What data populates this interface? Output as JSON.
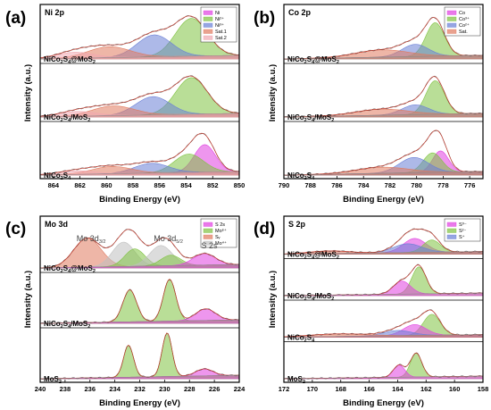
{
  "figure": {
    "x_axis_label": "Binding Energy (eV)",
    "y_axis_label": "Intensity (a.u.)"
  },
  "chart_data": [
    {
      "id": "a",
      "letter": "(a)",
      "title": "Ni 2p",
      "type": "line",
      "xlabel": "Binding Energy (eV)",
      "ylabel": "Intensity (a.u.)",
      "xlim": [
        865,
        850
      ],
      "xticks": [
        864,
        862,
        860,
        858,
        856,
        854,
        852,
        850
      ],
      "legend": {
        "placement": "top-right",
        "entries": [
          {
            "name": "Ni",
            "color": "#e040e0"
          },
          {
            "name": "Ni²⁺",
            "color": "#7fc241"
          },
          {
            "name": "Ni³⁺",
            "color": "#6a7fd6"
          },
          {
            "name": "Sat.1",
            "color": "#e07a5f"
          },
          {
            "name": "Sat.2",
            "color": "#f0a8b0"
          }
        ]
      },
      "samples": [
        {
          "label": "NiCo₂S₄@MoS₂",
          "label_main": "NiCo",
          "label_parts": [
            "2",
            "S",
            "4",
            "@MoS",
            "2"
          ],
          "peaks": [
            {
              "center": 853.6,
              "height": 0.62,
              "width": 1.2,
              "color": "#7fc241"
            },
            {
              "center": 856.4,
              "height": 0.36,
              "width": 1.3,
              "color": "#6a7fd6"
            },
            {
              "center": 859.8,
              "height": 0.18,
              "width": 1.6,
              "color": "#e07a5f"
            },
            {
              "center": 862.4,
              "height": 0.1,
              "width": 1.4,
              "color": "#f0a8b0"
            }
          ]
        },
        {
          "label": "NiCo₂S₄/MoS₂",
          "label_main": "NiCo",
          "label_parts": [
            "2",
            "S",
            "4",
            "/MoS",
            "2"
          ],
          "peaks": [
            {
              "center": 853.6,
              "height": 0.6,
              "width": 1.2,
              "color": "#7fc241"
            },
            {
              "center": 856.5,
              "height": 0.3,
              "width": 1.3,
              "color": "#6a7fd6"
            },
            {
              "center": 859.5,
              "height": 0.16,
              "width": 1.6,
              "color": "#e07a5f"
            },
            {
              "center": 862.2,
              "height": 0.08,
              "width": 1.4,
              "color": "#f0a8b0"
            }
          ]
        },
        {
          "label": "NiCo₂S₄",
          "label_main": "NiCo",
          "label_parts": [
            "2",
            "S",
            "4",
            "",
            ""
          ],
          "peaks": [
            {
              "center": 852.6,
              "height": 0.45,
              "width": 0.8,
              "color": "#e040e0"
            },
            {
              "center": 853.8,
              "height": 0.3,
              "width": 1.1,
              "color": "#7fc241"
            },
            {
              "center": 856.6,
              "height": 0.16,
              "width": 1.3,
              "color": "#6a7fd6"
            },
            {
              "center": 859.6,
              "height": 0.12,
              "width": 1.5,
              "color": "#e07a5f"
            },
            {
              "center": 862.3,
              "height": 0.06,
              "width": 1.4,
              "color": "#f0a8b0"
            }
          ]
        }
      ]
    },
    {
      "id": "b",
      "letter": "(b)",
      "title": "Co 2p",
      "type": "line",
      "xlabel": "Binding Energy (eV)",
      "ylabel": "Intensity (a.u.)",
      "xlim": [
        790,
        775
      ],
      "xticks": [
        790,
        788,
        786,
        784,
        782,
        780,
        778,
        776
      ],
      "legend": {
        "placement": "top-right",
        "entries": [
          {
            "name": "Co",
            "color": "#e040e0"
          },
          {
            "name": "Co³⁺",
            "color": "#7fc241"
          },
          {
            "name": "Co²⁺",
            "color": "#6a7fd6"
          },
          {
            "name": "Sat.",
            "color": "#e07a5f"
          }
        ]
      },
      "samples": [
        {
          "label": "NiCo₂S₄@MoS₂",
          "label_main": "NiCo",
          "label_parts": [
            "2",
            "S",
            "4",
            "@MoS",
            "2"
          ],
          "peaks": [
            {
              "center": 778.6,
              "height": 0.55,
              "width": 0.7,
              "color": "#7fc241"
            },
            {
              "center": 780.1,
              "height": 0.2,
              "width": 1.0,
              "color": "#6a7fd6"
            },
            {
              "center": 782.6,
              "height": 0.12,
              "width": 2.0,
              "color": "#e07a5f"
            }
          ]
        },
        {
          "label": "NiCo₂S₄/MoS₂",
          "label_main": "NiCo",
          "label_parts": [
            "2",
            "S",
            "4",
            "/MoS",
            "2"
          ],
          "peaks": [
            {
              "center": 778.6,
              "height": 0.55,
              "width": 0.7,
              "color": "#7fc241"
            },
            {
              "center": 780.1,
              "height": 0.16,
              "width": 1.0,
              "color": "#6a7fd6"
            },
            {
              "center": 782.6,
              "height": 0.1,
              "width": 2.0,
              "color": "#e07a5f"
            }
          ]
        },
        {
          "label": "NiCo₂S₄",
          "label_main": "NiCo",
          "label_parts": [
            "2",
            "S",
            "4",
            "",
            ""
          ],
          "peaks": [
            {
              "center": 778.2,
              "height": 0.35,
              "width": 0.6,
              "color": "#e040e0"
            },
            {
              "center": 778.8,
              "height": 0.32,
              "width": 0.7,
              "color": "#7fc241"
            },
            {
              "center": 780.2,
              "height": 0.25,
              "width": 1.1,
              "color": "#6a7fd6"
            },
            {
              "center": 782.6,
              "height": 0.1,
              "width": 2.0,
              "color": "#e07a5f"
            }
          ]
        }
      ]
    },
    {
      "id": "c",
      "letter": "(c)",
      "title": "Mo 3d",
      "type": "line",
      "xlabel": "Binding Energy (eV)",
      "ylabel": "Intensity (a.u.)",
      "xlim": [
        240,
        224
      ],
      "xticks": [
        240,
        238,
        236,
        234,
        232,
        230,
        228,
        226,
        224
      ],
      "legend": {
        "placement": "top-right",
        "entries": [
          {
            "name": "S 2s",
            "color": "#e040e0"
          },
          {
            "name": "Mo⁶⁺",
            "color": "#7fc241"
          },
          {
            "name": "Sᵥ",
            "color": "#e07a5f"
          },
          {
            "name": "Mo⁴⁺",
            "color": "#c0c0c0"
          }
        ]
      },
      "annotations": [
        {
          "text": "Mo 3d",
          "sub": "3/2",
          "x": 235.9
        },
        {
          "text": "Mo 3d",
          "sub": "5/2",
          "x": 229.7
        },
        {
          "text": "S 2s",
          "sub": "",
          "x": 226.4
        }
      ],
      "samples": [
        {
          "label": "NiCo₂S₄@MoS₂",
          "label_main": "NiCo",
          "label_parts": [
            "2",
            "S",
            "4",
            "@MoS",
            "2"
          ],
          "peaks": [
            {
              "center": 236.2,
              "height": 0.5,
              "width": 1.1,
              "color": "#e07a5f"
            },
            {
              "center": 233.3,
              "height": 0.42,
              "width": 0.9,
              "color": "#c0c0c0"
            },
            {
              "center": 232.4,
              "height": 0.3,
              "width": 0.8,
              "color": "#7fc241"
            },
            {
              "center": 230.3,
              "height": 0.35,
              "width": 0.9,
              "color": "#c0c0c0"
            },
            {
              "center": 229.5,
              "height": 0.18,
              "width": 0.8,
              "color": "#7fc241"
            },
            {
              "center": 226.8,
              "height": 0.2,
              "width": 0.9,
              "color": "#e040e0"
            }
          ]
        },
        {
          "label": "NiCo₂S₄/MoS₂",
          "label_main": "NiCo",
          "label_parts": [
            "2",
            "S",
            "4",
            "/MoS",
            "2"
          ],
          "peaks": [
            {
              "center": 232.8,
              "height": 0.55,
              "width": 0.55,
              "color": "#7fc241"
            },
            {
              "center": 229.6,
              "height": 0.72,
              "width": 0.5,
              "color": "#7fc241"
            },
            {
              "center": 226.7,
              "height": 0.2,
              "width": 0.8,
              "color": "#e040e0"
            }
          ]
        },
        {
          "label": "MoS₂",
          "label_main": "MoS",
          "label_parts": [
            "2",
            "",
            "",
            "",
            ""
          ],
          "peaks": [
            {
              "center": 232.9,
              "height": 0.55,
              "width": 0.4,
              "color": "#7fc241"
            },
            {
              "center": 229.8,
              "height": 0.75,
              "width": 0.4,
              "color": "#7fc241"
            },
            {
              "center": 226.8,
              "height": 0.12,
              "width": 0.7,
              "color": "#e040e0"
            }
          ]
        }
      ]
    },
    {
      "id": "d",
      "letter": "(d)",
      "title": "S 2p",
      "type": "line",
      "xlabel": "Binding Energy (eV)",
      "ylabel": "Intensity (a.u.)",
      "xlim": [
        172,
        158
      ],
      "xticks": [
        172,
        170,
        168,
        166,
        164,
        162,
        160,
        158
      ],
      "legend": {
        "placement": "top-right",
        "entries": [
          {
            "name": "S⁰⁻",
            "color": "#e040e0"
          },
          {
            "name": "S²⁻",
            "color": "#7fc241"
          },
          {
            "name": "S⁺",
            "color": "#6a7fd6"
          }
        ]
      },
      "samples": [
        {
          "label": "NiCo₂S₄@MoS₂",
          "label_main": "NiCo",
          "label_parts": [
            "2",
            "S",
            "4",
            "@MoS",
            "2"
          ],
          "peaks": [
            {
              "center": 162.8,
              "height": 0.32,
              "width": 0.8,
              "color": "#e040e0"
            },
            {
              "center": 161.6,
              "height": 0.28,
              "width": 0.6,
              "color": "#7fc241"
            },
            {
              "center": 163.3,
              "height": 0.2,
              "width": 1.0,
              "color": "#6a7fd6"
            },
            {
              "center": 168.8,
              "height": 0.06,
              "width": 1.4,
              "color": "#e07a5f"
            }
          ]
        },
        {
          "label": "NiCo₂S₄/MoS₂",
          "label_main": "NiCo",
          "label_parts": [
            "2",
            "S",
            "4",
            "/MoS",
            "2"
          ],
          "peaks": [
            {
              "center": 162.5,
              "height": 0.62,
              "width": 0.5,
              "color": "#7fc241"
            },
            {
              "center": 163.7,
              "height": 0.3,
              "width": 0.6,
              "color": "#e040e0"
            }
          ]
        },
        {
          "label": "NiCo₂S₄",
          "label_main": "NiCo",
          "label_parts": [
            "2",
            "S",
            "4",
            "",
            ""
          ],
          "peaks": [
            {
              "center": 161.6,
              "height": 0.48,
              "width": 0.6,
              "color": "#7fc241"
            },
            {
              "center": 162.8,
              "height": 0.25,
              "width": 0.8,
              "color": "#e040e0"
            },
            {
              "center": 164.0,
              "height": 0.12,
              "width": 1.0,
              "color": "#6a7fd6"
            },
            {
              "center": 168.2,
              "height": 0.06,
              "width": 2.0,
              "color": "#e07a5f"
            }
          ]
        },
        {
          "label": "MoS₂",
          "label_main": "MoS",
          "label_parts": [
            "2",
            "",
            "",
            "",
            ""
          ],
          "peaks": [
            {
              "center": 162.7,
              "height": 0.55,
              "width": 0.4,
              "color": "#7fc241"
            },
            {
              "center": 163.9,
              "height": 0.28,
              "width": 0.4,
              "color": "#e040e0"
            }
          ]
        }
      ]
    }
  ]
}
